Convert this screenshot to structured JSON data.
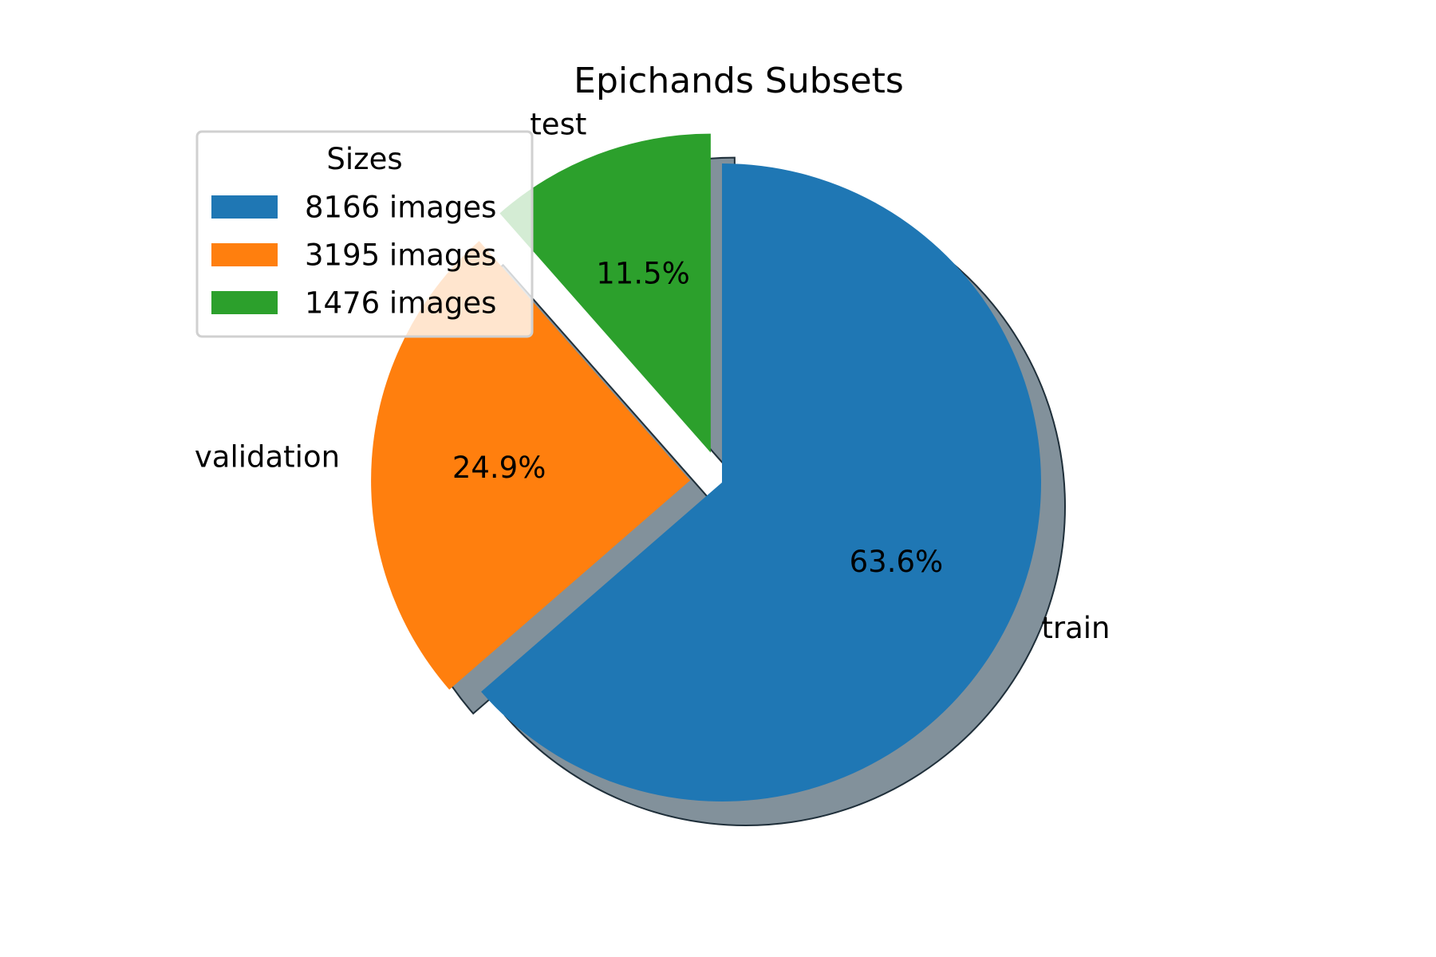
{
  "chart_data": {
    "type": "pie",
    "title": "Epichands Subsets",
    "categories": [
      "train",
      "validation",
      "test"
    ],
    "values": [
      8166,
      3195,
      1476
    ],
    "percent_labels": [
      "63.6%",
      "24.9%",
      "11.5%"
    ],
    "colors": [
      "#1f77b4",
      "#ff7f0e",
      "#2ca02c"
    ],
    "explode": [
      0,
      0.1,
      0.1
    ],
    "start_angle_deg": 90,
    "shadow": true,
    "legend": {
      "title": "Sizes",
      "placement": "upper-left",
      "entries": [
        "8166 images",
        "3195 images",
        "1476 images"
      ]
    }
  }
}
